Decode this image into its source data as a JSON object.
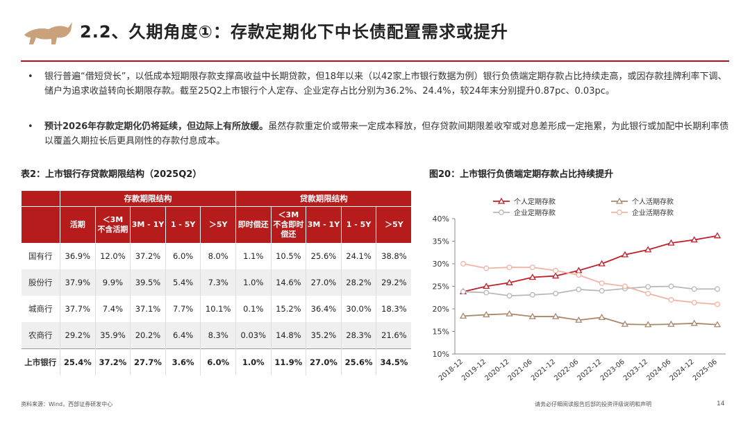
{
  "header": {
    "title": "2.2、久期角度①：存款定期化下中长债配置需求或提升"
  },
  "bullets": [
    {
      "text": "银行普遍“借短贷长”，以低成本短期限存款支撑高收益中长期贷款，但18年以来（以42家上市银行数据为例）银行负债端定期存款占比持续走高，或因存款挂牌利率下调、储户为追求收益转向长期限存款。截至25Q2上市银行个人定存、企业定存占比分别为36.2%、24.4%，较24年末分别提升0.87pc、0.03pc。"
    },
    {
      "bold": "预计2026年存款定期化仍将延续，但边际上有所放缓。",
      "text": "虽然存款重定价或带来一定成本释放，但存贷款间期限差收窄或对息差形成一定拖累，为此银行或加配中长期利率债以覆盖久期拉长后更具刚性的存款付息成本。"
    }
  ],
  "table": {
    "title": "表2：上市银行存贷款期限结构（2025Q2）",
    "groups": [
      "存款期限结构",
      "贷款期限结构"
    ],
    "columns": [
      [
        "活期"
      ],
      [
        "＜3M",
        "不含活期"
      ],
      [
        "3M - 1Y"
      ],
      [
        "1 - 5Y"
      ],
      [
        "＞5Y"
      ],
      [
        "即时偿还"
      ],
      [
        "＜3M",
        "不含即时",
        "偿还"
      ],
      [
        "3M - 1Y"
      ],
      [
        "1 - 5Y"
      ],
      [
        "＞5Y"
      ]
    ],
    "rows": [
      [
        "国有行",
        "36.9%",
        "12.0%",
        "37.2%",
        "6.0%",
        "8.0%",
        "1.1%",
        "10.5%",
        "25.6%",
        "24.1%",
        "38.8%"
      ],
      [
        "股份行",
        "37.9%",
        "9.9%",
        "39.5%",
        "5.4%",
        "7.3%",
        "1.0%",
        "14.6%",
        "27.0%",
        "28.2%",
        "29.2%"
      ],
      [
        "城商行",
        "37.7%",
        "7.4%",
        "37.1%",
        "7.7%",
        "10.1%",
        "0.1%",
        "15.2%",
        "36.4%",
        "30.0%",
        "18.3%"
      ],
      [
        "农商行",
        "29.2%",
        "35.9%",
        "20.2%",
        "6.4%",
        "8.3%",
        "0.03%",
        "14.8%",
        "35.2%",
        "28.3%",
        "21.6%"
      ],
      [
        "上市银行",
        "25.4%",
        "37.2%",
        "27.7%",
        "3.6%",
        "6.0%",
        "1.0%",
        "11.9%",
        "27.0%",
        "25.6%",
        "34.5%"
      ]
    ]
  },
  "chart_data": {
    "type": "line",
    "title": "图20：上市银行负债端定期存款占比持续提升",
    "categories": [
      "2018-12",
      "2019-12",
      "2020-12",
      "2021-06",
      "2021-12",
      "2022-06",
      "2022-12",
      "2023-06",
      "2023-12",
      "2024-06",
      "2024-12",
      "2025-06"
    ],
    "series": [
      {
        "name": "个人定期存款",
        "color": "#c0202a",
        "marker": "triangle",
        "values": [
          23.8,
          25.0,
          25.8,
          27.0,
          27.3,
          28.5,
          30.0,
          32.0,
          33.1,
          34.6,
          35.3,
          36.2
        ]
      },
      {
        "name": "个人活期存款",
        "color": "#a9876a",
        "marker": "triangle",
        "values": [
          18.4,
          18.7,
          18.9,
          18.3,
          18.3,
          17.5,
          18.1,
          16.6,
          16.5,
          16.6,
          16.8,
          16.5
        ]
      },
      {
        "name": "企业定期存款",
        "color": "#b8b8b8",
        "marker": "circle",
        "values": [
          23.8,
          23.6,
          22.9,
          23.1,
          23.4,
          24.3,
          24.0,
          24.5,
          24.9,
          25.0,
          24.4,
          24.4
        ]
      },
      {
        "name": "企业活期存款",
        "color": "#f0b4a4",
        "marker": "circle",
        "values": [
          30.0,
          29.0,
          29.2,
          29.2,
          28.5,
          27.5,
          25.7,
          25.0,
          23.4,
          22.0,
          21.4,
          21.0
        ]
      }
    ],
    "ylim": [
      10,
      40
    ],
    "yticks": [
      {
        "value": 10,
        "label": "10%"
      },
      {
        "value": 15,
        "label": "15%"
      },
      {
        "value": 20,
        "label": "20%"
      },
      {
        "value": 25,
        "label": "25%"
      },
      {
        "value": 30,
        "label": "30%"
      },
      {
        "value": 35,
        "label": "35%"
      },
      {
        "value": 40,
        "label": "40%"
      }
    ]
  },
  "footer": {
    "source": "资料来源：Wind，西部证券研发中心",
    "disclaimer": "请务必仔细阅读报告后部的投资评级说明和声明",
    "page": "14"
  }
}
